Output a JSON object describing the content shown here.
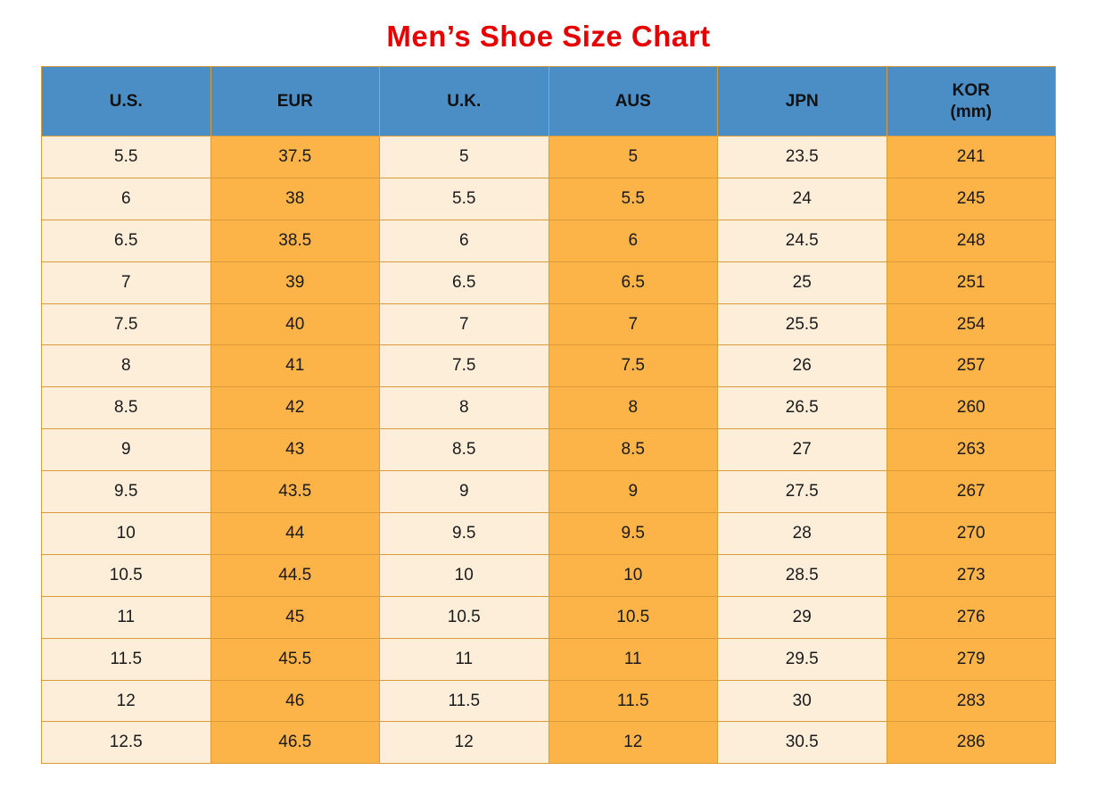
{
  "title": "Men’s Shoe Size Chart",
  "colors": {
    "title_color": "#e60000",
    "header_bg": "#4a8ec5",
    "header_text": "#111111",
    "cell_text": "#1a1a1a",
    "col_light": "#fdeeda",
    "col_orange": "#fcb347",
    "border_color": "#dd9a39",
    "outer_border": "#c9892f"
  },
  "chart_data": {
    "type": "table",
    "title": "Men’s Shoe Size Chart",
    "columns": [
      {
        "label": "U.S.",
        "sub": ""
      },
      {
        "label": "EUR",
        "sub": ""
      },
      {
        "label": "U.K.",
        "sub": ""
      },
      {
        "label": "AUS",
        "sub": ""
      },
      {
        "label": "JPN",
        "sub": ""
      },
      {
        "label": "KOR",
        "sub": "(mm)"
      }
    ],
    "rows": [
      [
        "5.5",
        "37.5",
        "5",
        "5",
        "23.5",
        "241"
      ],
      [
        "6",
        "38",
        "5.5",
        "5.5",
        "24",
        "245"
      ],
      [
        "6.5",
        "38.5",
        "6",
        "6",
        "24.5",
        "248"
      ],
      [
        "7",
        "39",
        "6.5",
        "6.5",
        "25",
        "251"
      ],
      [
        "7.5",
        "40",
        "7",
        "7",
        "25.5",
        "254"
      ],
      [
        "8",
        "41",
        "7.5",
        "7.5",
        "26",
        "257"
      ],
      [
        "8.5",
        "42",
        "8",
        "8",
        "26.5",
        "260"
      ],
      [
        "9",
        "43",
        "8.5",
        "8.5",
        "27",
        "263"
      ],
      [
        "9.5",
        "43.5",
        "9",
        "9",
        "27.5",
        "267"
      ],
      [
        "10",
        "44",
        "9.5",
        "9.5",
        "28",
        "270"
      ],
      [
        "10.5",
        "44.5",
        "10",
        "10",
        "28.5",
        "273"
      ],
      [
        "11",
        "45",
        "10.5",
        "10.5",
        "29",
        "276"
      ],
      [
        "11.5",
        "45.5",
        "11",
        "11",
        "29.5",
        "279"
      ],
      [
        "12",
        "46",
        "11.5",
        "11.5",
        "30",
        "283"
      ],
      [
        "12.5",
        "46.5",
        "12",
        "12",
        "30.5",
        "286"
      ]
    ]
  }
}
